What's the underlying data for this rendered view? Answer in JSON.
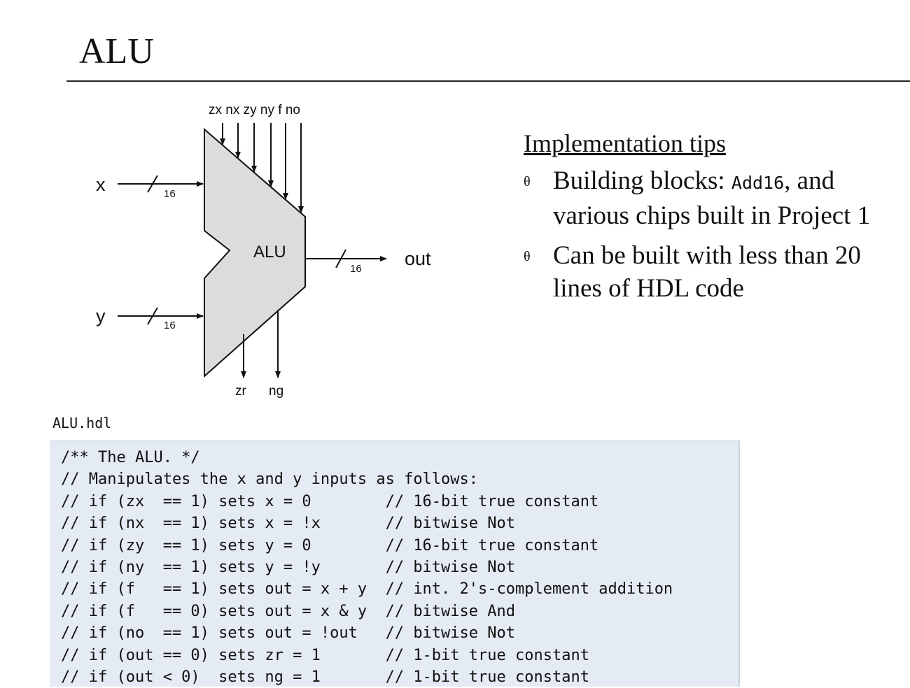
{
  "slide": {
    "title": "ALU"
  },
  "diagram": {
    "chip_label": "ALU",
    "control_inputs": [
      "zx",
      "nx",
      "zy",
      "ny",
      "f",
      "no"
    ],
    "inputs": [
      {
        "name": "x",
        "width": "16"
      },
      {
        "name": "y",
        "width": "16"
      }
    ],
    "output": {
      "name": "out",
      "width": "16"
    },
    "status_outputs": [
      "zr",
      "ng"
    ]
  },
  "tips": {
    "heading": "Implementation tips",
    "bullet_glyph": "θ",
    "item1": {
      "prefix": "Building blocks: ",
      "code": "Add16",
      "suffix": ", and various chips built in Project 1"
    },
    "item2": "Can be built with less than 20 lines of HDL code"
  },
  "code": {
    "filename": "ALU.hdl",
    "lines": [
      "/** The ALU. */",
      "// Manipulates the x and y inputs as follows:",
      "// if (zx  == 1) sets x = 0        // 16-bit true constant",
      "// if (nx  == 1) sets x = !x       // bitwise Not",
      "// if (zy  == 1) sets y = 0        // 16-bit true constant",
      "// if (ny  == 1) sets y = !y       // bitwise Not",
      "// if (f   == 1) sets out = x + y  // int. 2's-complement addition",
      "// if (f   == 0) sets out = x & y  // bitwise And",
      "// if (no  == 1) sets out = !out   // bitwise Not",
      "// if (out == 0) sets zr = 1       // 1-bit true constant",
      "// if (out < 0)  sets ng = 1       // 1-bit true constant"
    ]
  }
}
